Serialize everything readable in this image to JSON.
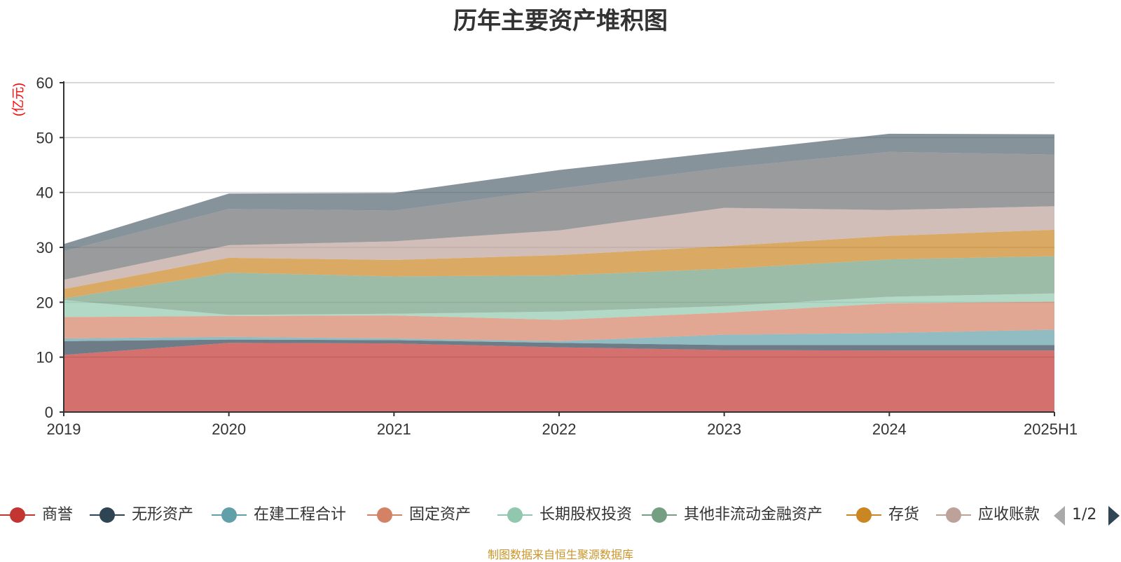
{
  "chart_data": {
    "type": "area",
    "title": "历年主要资产堆积图",
    "ylabel": "(亿元)",
    "xlabel": "",
    "categories": [
      "2019",
      "2020",
      "2021",
      "2022",
      "2023",
      "2024",
      "2025H1"
    ],
    "ylim": [
      0,
      60
    ],
    "yticks": [
      0,
      10,
      20,
      30,
      40,
      50,
      60
    ],
    "stacked": true,
    "grid": true,
    "legend_position": "bottom",
    "series": [
      {
        "name": "商誉",
        "color": "#c23531",
        "values": [
          10.4,
          12.6,
          12.5,
          11.8,
          11.3,
          11.2,
          11.2
        ]
      },
      {
        "name": "无形资产",
        "color": "#2f4554",
        "values": [
          2.5,
          0.6,
          0.6,
          0.8,
          0.9,
          1.0,
          1.0
        ]
      },
      {
        "name": "在建工程合计",
        "color": "#61a0a8",
        "values": [
          0.5,
          0.5,
          0.3,
          0.3,
          1.9,
          2.2,
          2.8
        ]
      },
      {
        "name": "固定资产",
        "color": "#d48265",
        "values": [
          3.9,
          3.8,
          4.2,
          3.9,
          4.0,
          5.4,
          5.1
        ]
      },
      {
        "name": "长期股权投资",
        "color": "#91c7ae",
        "values": [
          3.1,
          0.2,
          0.3,
          1.5,
          1.2,
          1.2,
          1.5
        ]
      },
      {
        "name": "其他非流动金融资产",
        "color": "#749f83",
        "values": [
          0.3,
          7.7,
          6.8,
          6.6,
          6.8,
          6.8,
          6.8
        ]
      },
      {
        "name": "存货",
        "color": "#ca8622",
        "values": [
          1.7,
          2.7,
          3.0,
          3.7,
          4.1,
          4.3,
          4.8
        ]
      },
      {
        "name": "应收账款",
        "color": "#bda29a",
        "values": [
          1.7,
          2.3,
          3.4,
          4.5,
          7.0,
          4.7,
          4.3
        ]
      },
      {
        "name": "",
        "color": "#6e7074",
        "values": [
          5.2,
          6.6,
          5.6,
          7.6,
          7.3,
          10.6,
          9.4
        ]
      },
      {
        "name": "",
        "color": "#546570",
        "values": [
          1.3,
          2.8,
          3.2,
          3.4,
          2.9,
          3.3,
          3.7
        ]
      }
    ]
  },
  "legend": {
    "items": [
      {
        "label": "商誉",
        "color": "#c23531"
      },
      {
        "label": "无形资产",
        "color": "#2f4554"
      },
      {
        "label": "在建工程合计",
        "color": "#61a0a8"
      },
      {
        "label": "固定资产",
        "color": "#d48265"
      },
      {
        "label": "长期股权投资",
        "color": "#91c7ae"
      },
      {
        "label": "其他非流动金融资产",
        "color": "#749f83"
      },
      {
        "label": "存货",
        "color": "#ca8622"
      },
      {
        "label": "应收账款",
        "color": "#bda29a"
      }
    ],
    "page_indicator": "1/2"
  },
  "footer": {
    "source": "制图数据来自恒生聚源数据库"
  },
  "colors": {
    "ylabel": "#ff0000",
    "source": "#c9952a",
    "grid": "#cccccc"
  }
}
